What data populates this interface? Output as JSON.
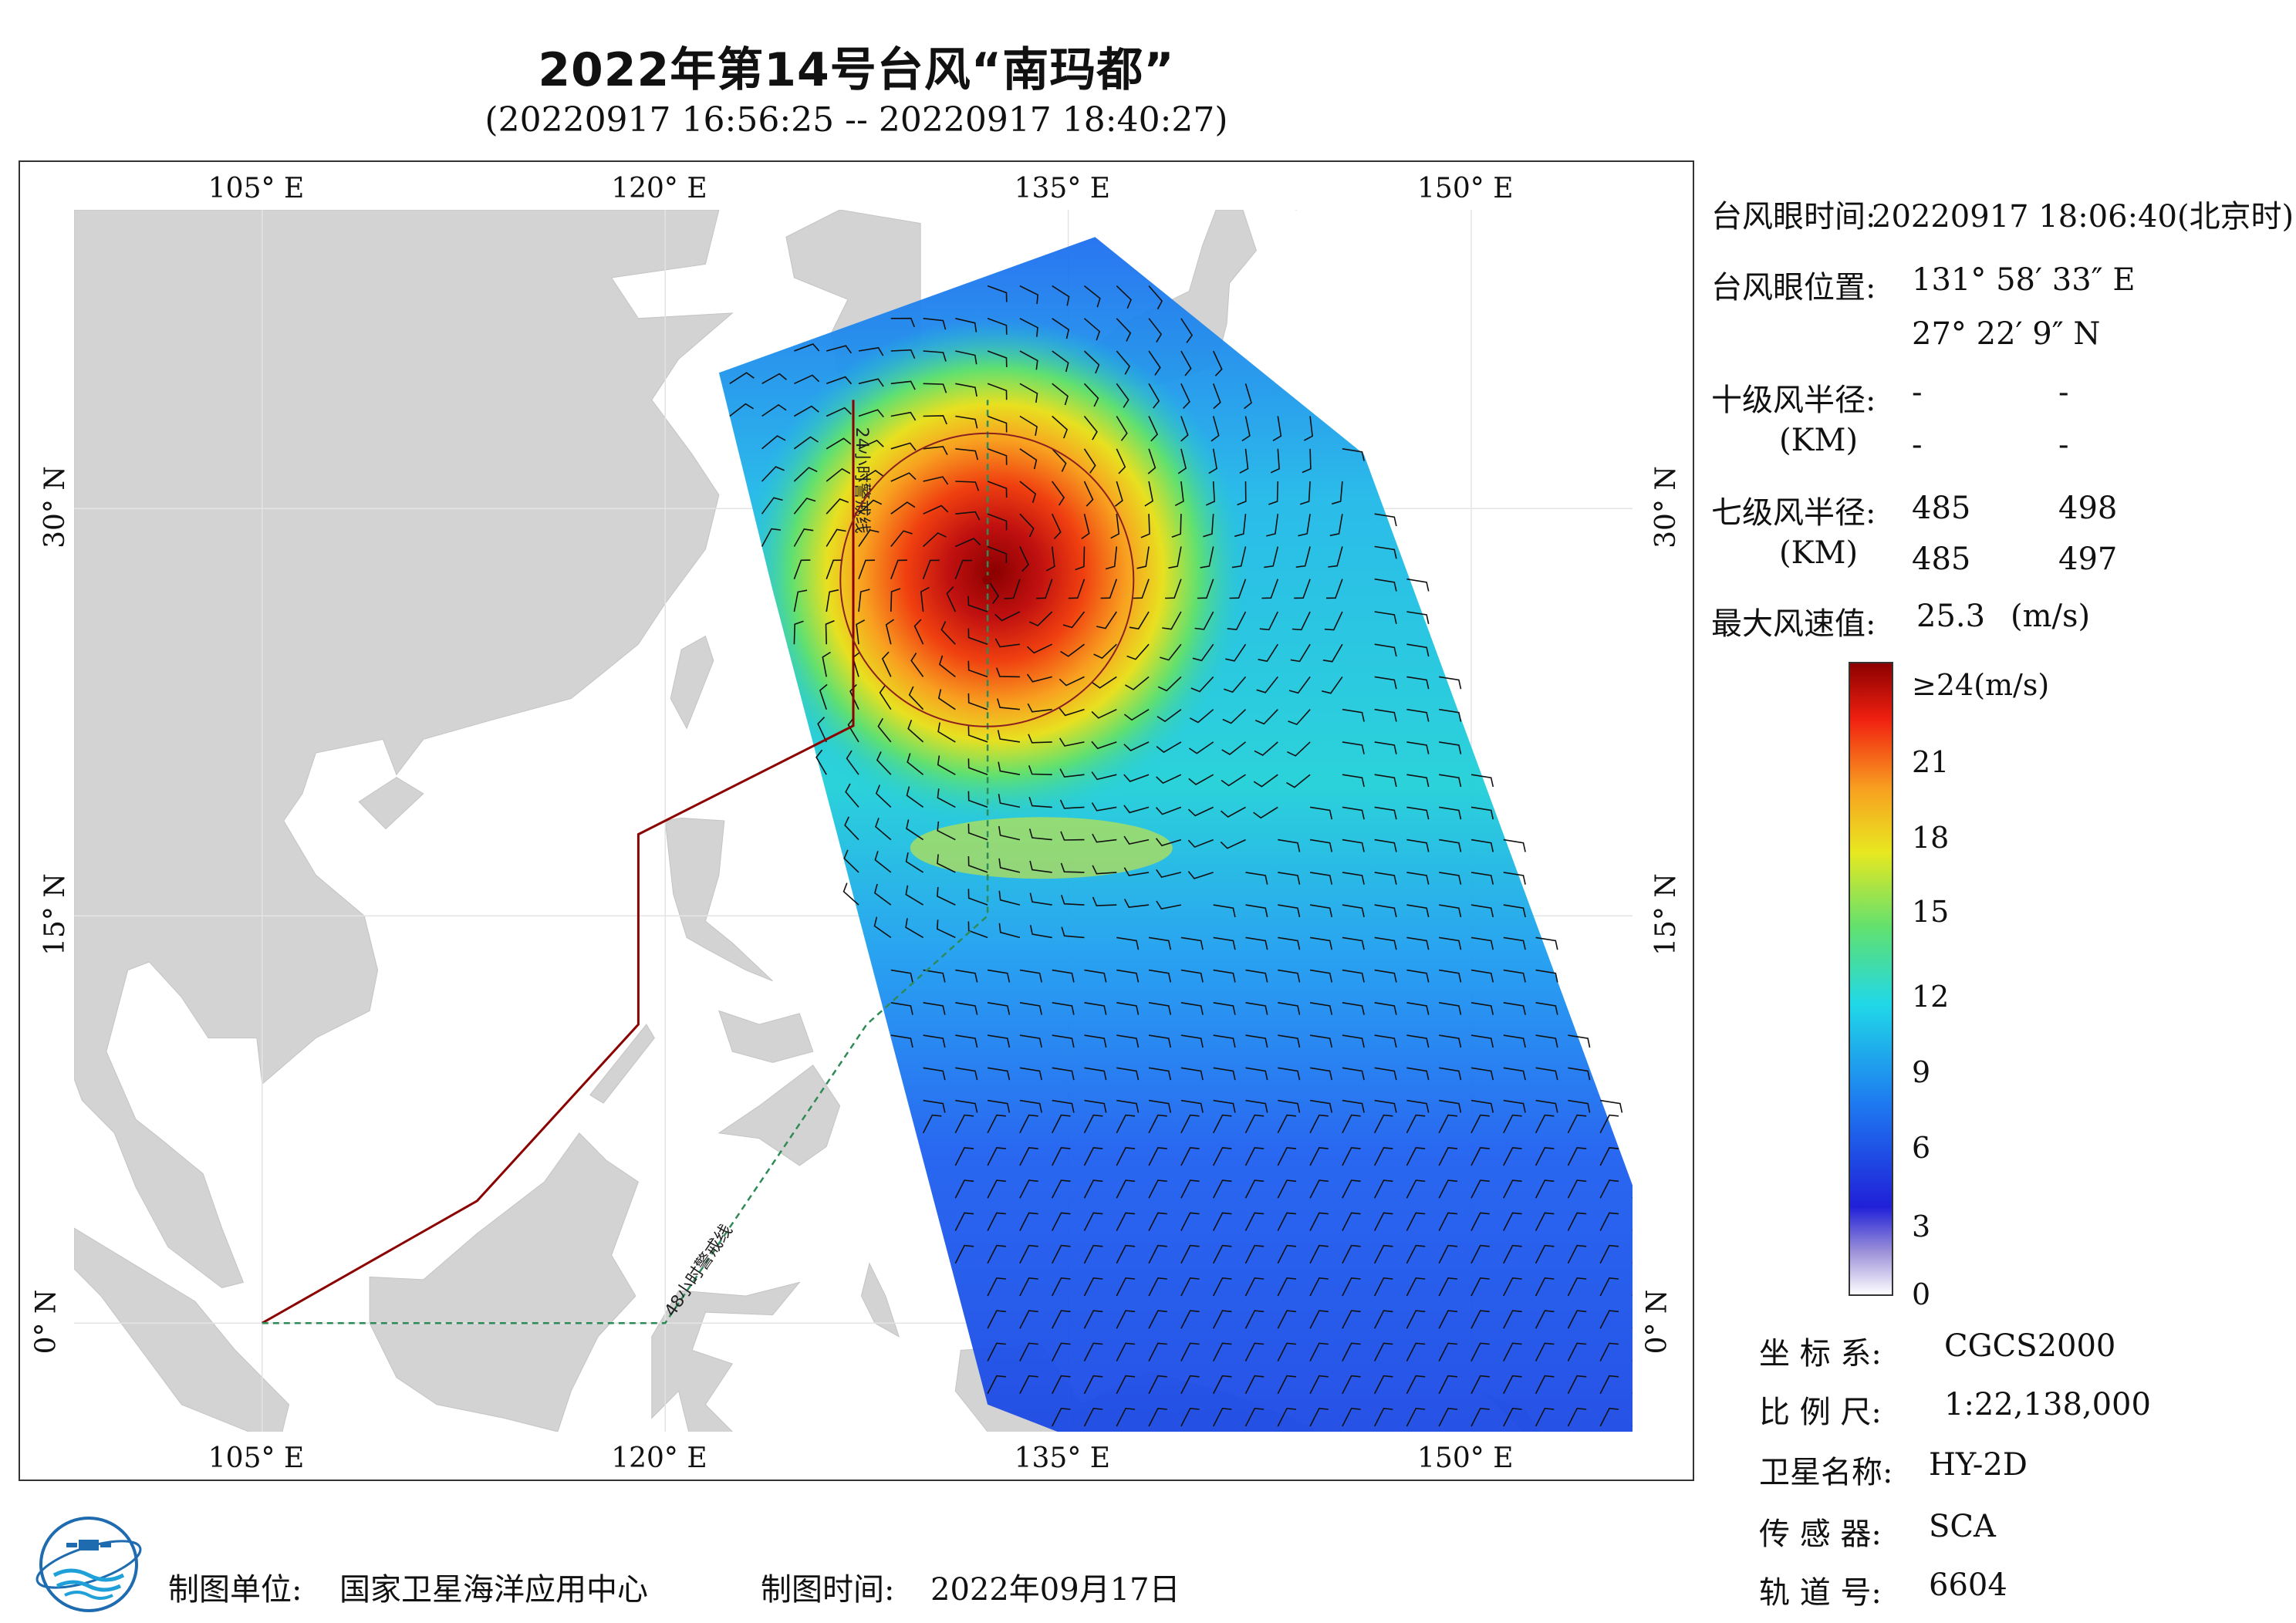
{
  "title": "2022年第14号台风“南玛都”",
  "subtitle": "(20220917 16:56:25 -- 20220917 18:40:27)",
  "axes": {
    "top_ticks": [
      "105° E",
      "120° E",
      "135° E",
      "150° E"
    ],
    "bottom_ticks": [
      "105° E",
      "120° E",
      "135° E",
      "150° E"
    ],
    "left_ticks": [
      "30° N",
      "15° N",
      "0° N"
    ],
    "right_ticks": [
      "30° N",
      "15° N",
      "0° N"
    ]
  },
  "map": {
    "lon_range": [
      98,
      156
    ],
    "lat_range": [
      -4,
      41
    ],
    "warning_line_24h": "24小时警戒线",
    "warning_line_48h": "48小时警戒线",
    "eye": {
      "lon": 131.976,
      "lat": 27.369
    },
    "swath_corners": [
      [
        122,
        35
      ],
      [
        136,
        40
      ],
      [
        146,
        32
      ],
      [
        159,
        -3
      ],
      [
        145,
        -8
      ],
      [
        132,
        -3
      ],
      [
        124,
        27
      ]
    ],
    "colors": {
      "land": "#d3d3d3",
      "warning_24h": "#8b0000",
      "warning_48h": "#2e8b57",
      "grid": "#e4e4e4"
    }
  },
  "info": {
    "eye_time_label": "台风眼时间:",
    "eye_time_value": "20220917 18:06:40(北京时)",
    "eye_pos_label": "台风眼位置:",
    "eye_lon": "131° 58′ 33″ E",
    "eye_lat": "27° 22′ 9″ N",
    "r10_label": "十级风半径:",
    "r10_unit": "(KM)",
    "r10_values": [
      "-",
      "-",
      "-",
      "-"
    ],
    "r7_label": "七级风半径:",
    "r7_unit": "(KM)",
    "r7_values": [
      "485",
      "498",
      "485",
      "497"
    ],
    "max_wind_label": "最大风速值:",
    "max_wind_value": "25.3",
    "max_wind_unit": "(m/s)"
  },
  "colorbar": {
    "labels": [
      "≥24(m/s)",
      "21",
      "18",
      "15",
      "12",
      "9",
      "6",
      "3",
      "0"
    ],
    "colors": [
      "#ffffff",
      "#9a8fd8",
      "#2020d8",
      "#1e78f0",
      "#20d8e8",
      "#60e070",
      "#e8e820",
      "#f8a020",
      "#f02010",
      "#8b0000"
    ]
  },
  "meta": {
    "crs_label": "坐 标 系:",
    "crs_value": "CGCS2000",
    "scale_label": "比 例 尺:",
    "scale_value": "1:22,138,000",
    "satellite_label": "卫星名称:",
    "satellite_value": "HY-2D",
    "sensor_label": "传 感 器:",
    "sensor_value": "SCA",
    "orbit_label": "轨 道 号:",
    "orbit_value": "6604"
  },
  "footer": {
    "org_label": "制图单位:",
    "org_value": "国家卫星海洋应用中心",
    "date_label": "制图时间:",
    "date_value": "2022年09月17日"
  }
}
